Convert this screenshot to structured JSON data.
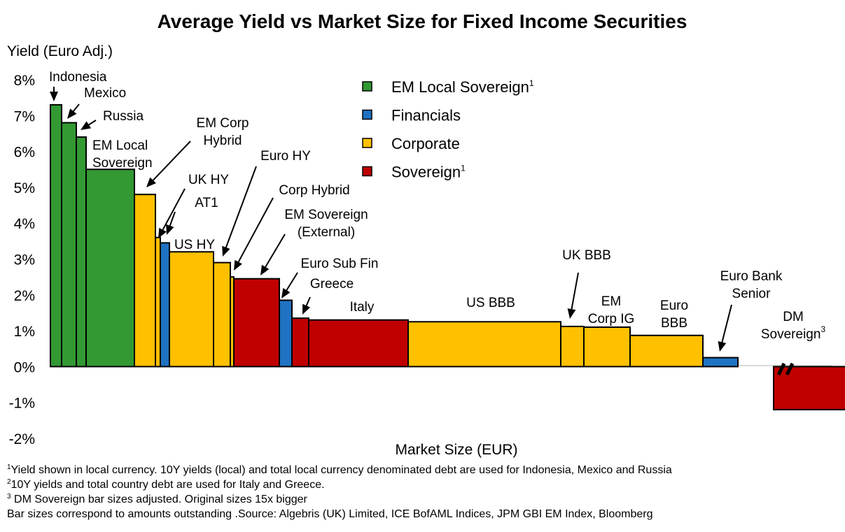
{
  "chart_data": {
    "type": "bar",
    "title": "Average Yield vs Market Size for Fixed Income Securities",
    "ylabel": "Yield (Euro Adj.)",
    "xlabel": "Market Size (EUR)",
    "ylim": [
      -2,
      8
    ],
    "yticks": [
      "8%",
      "7%",
      "6%",
      "5%",
      "4%",
      "3%",
      "2%",
      "1%",
      "0%",
      "-1%",
      "-2%"
    ],
    "legend_placement": "top-center",
    "legend": [
      {
        "name": "EM Local Sovereign",
        "sup": "1",
        "color": "#339933"
      },
      {
        "name": "Financials",
        "sup": "",
        "color": "#1f73c2"
      },
      {
        "name": "Corporate",
        "sup": "",
        "color": "#ffc000"
      },
      {
        "name": "Sovereign",
        "sup": "1",
        "color": "#c00000"
      }
    ],
    "bars": [
      {
        "label": "Indonesia",
        "category": "EM Local Sovereign",
        "yield": 7.3,
        "size": 16
      },
      {
        "label": "Mexico",
        "category": "EM Local Sovereign",
        "yield": 6.8,
        "size": 21
      },
      {
        "label": "Russia",
        "category": "EM Local Sovereign",
        "yield": 6.4,
        "size": 14
      },
      {
        "label": "EM Local Sovereign",
        "category": "EM Local Sovereign",
        "yield": 5.5,
        "size": 69
      },
      {
        "label": "EM Corp Hybrid",
        "category": "Corporate",
        "yield": 4.8,
        "size": 30
      },
      {
        "label": "UK HY",
        "category": "Corporate",
        "yield": 3.6,
        "size": 7
      },
      {
        "label": "AT1",
        "category": "Financials",
        "yield": 3.45,
        "size": 13
      },
      {
        "label": "US HY",
        "category": "Corporate",
        "yield": 3.2,
        "size": 63
      },
      {
        "label": "Euro HY",
        "category": "Corporate",
        "yield": 2.9,
        "size": 24
      },
      {
        "label": "Corp Hybrid",
        "category": "Corporate",
        "yield": 2.5,
        "size": 5
      },
      {
        "label": "EM Sovereign (External)",
        "category": "Sovereign",
        "yield": 2.45,
        "size": 65
      },
      {
        "label": "Euro Sub Fin",
        "category": "Financials",
        "yield": 1.85,
        "size": 18
      },
      {
        "label": "Greece",
        "category": "Sovereign",
        "yield": 1.35,
        "size": 24
      },
      {
        "label": "Italy",
        "category": "Sovereign",
        "yield": 1.3,
        "size": 142
      },
      {
        "label": "US BBB",
        "category": "Corporate",
        "yield": 1.25,
        "size": 218
      },
      {
        "label": "UK BBB",
        "category": "Corporate",
        "yield": 1.12,
        "size": 33
      },
      {
        "label": "EM Corp IG",
        "category": "Corporate",
        "yield": 1.1,
        "size": 66
      },
      {
        "label": "Euro BBB",
        "category": "Corporate",
        "yield": 0.87,
        "size": 104
      },
      {
        "label": "Euro Bank Senior",
        "category": "Financials",
        "yield": 0.25,
        "size": 50
      },
      {
        "label": "DM Sovereign",
        "category": "Sovereign",
        "yield": -1.2,
        "size": 136,
        "gap_before": 51
      }
    ],
    "annotations": [
      {
        "lines": [
          "Indonesia"
        ],
        "sup": ""
      },
      {
        "lines": [
          "Mexico"
        ],
        "sup": ""
      },
      {
        "lines": [
          "Russia"
        ],
        "sup": ""
      },
      {
        "lines": [
          "EM Local",
          "Sovereign"
        ],
        "sup": ""
      },
      {
        "lines": [
          "EM Corp",
          "Hybrid"
        ],
        "sup": ""
      },
      {
        "lines": [
          "UK HY"
        ],
        "sup": ""
      },
      {
        "lines": [
          "AT1"
        ],
        "sup": ""
      },
      {
        "lines": [
          "US HY"
        ],
        "sup": ""
      },
      {
        "lines": [
          "Euro HY"
        ],
        "sup": ""
      },
      {
        "lines": [
          "Corp Hybrid"
        ],
        "sup": ""
      },
      {
        "lines": [
          "EM Sovereign",
          "(External)"
        ],
        "sup": ""
      },
      {
        "lines": [
          "Euro Sub Fin"
        ],
        "sup": ""
      },
      {
        "lines": [
          "Greece"
        ],
        "sup": ""
      },
      {
        "lines": [
          "Italy"
        ],
        "sup": ""
      },
      {
        "lines": [
          "US BBB"
        ],
        "sup": ""
      },
      {
        "lines": [
          "UK BBB"
        ],
        "sup": ""
      },
      {
        "lines": [
          "EM",
          "Corp IG"
        ],
        "sup": ""
      },
      {
        "lines": [
          "Euro",
          "BBB"
        ],
        "sup": ""
      },
      {
        "lines": [
          "Euro Bank",
          "Senior"
        ],
        "sup": ""
      },
      {
        "lines": [
          "DM",
          "Sovereign"
        ],
        "sup": "3"
      }
    ]
  },
  "footnotes": [
    {
      "sup": "1",
      "text": "Yield shown in local currency. 10Y yields (local) and total local currency denominated debt are used for Indonesia, Mexico and Russia"
    },
    {
      "sup": "2",
      "text": "10Y yields and total country debt are used for Italy and Greece."
    },
    {
      "sup": "3",
      "text": " DM Sovereign bar sizes adjusted. Original sizes 15x bigger"
    },
    {
      "sup": "",
      "text": "Bar sizes correspond to amounts outstanding .Source: Algebris (UK) Limited, ICE BofAML Indices, JPM GBI EM Index, Bloomberg"
    }
  ]
}
